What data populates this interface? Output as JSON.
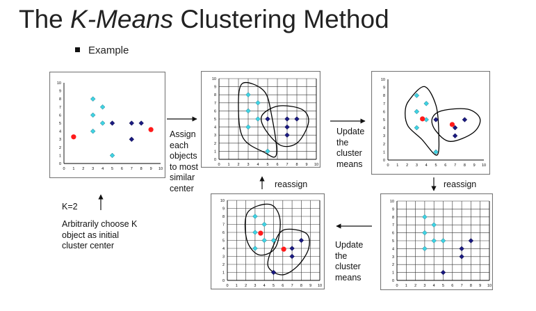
{
  "title_prefix": "The ",
  "title_italic": "K-Means",
  "title_suffix": " Clustering Method",
  "bullet": "Example",
  "labels": {
    "assign": "Assign\neach\nobjects\nto most\nsimilar\ncenter",
    "update_top": "Update\nthe\ncluster\nmeans",
    "update_bottom": "Update\nthe\ncluster\nmeans",
    "reassign_right": "reassign",
    "reassign_bottom": "reassign",
    "k": "K=2",
    "arbitrary": "Arbitrarily choose K\nobject as initial\ncluster center"
  },
  "colors": {
    "light": "#3FD3E3",
    "dark": "#1A1A80",
    "center": "#FF1A1A",
    "grid": "#000000"
  },
  "chart_data": [
    {
      "type": "scatter",
      "id": "p1",
      "xlim": [
        0,
        10
      ],
      "ylim": [
        0,
        10
      ],
      "grid": false,
      "x_ticks": [
        "0",
        "1",
        "2",
        "3",
        "4",
        "5",
        "6",
        "7",
        "8",
        "9",
        "10"
      ],
      "y_ticks": [
        "0",
        "1",
        "2",
        "3",
        "4",
        "5",
        "6",
        "7",
        "8",
        "9",
        "10"
      ],
      "series": [
        {
          "role": "light",
          "points": [
            [
              3,
              8
            ],
            [
              4,
              7
            ],
            [
              3,
              6
            ],
            [
              4,
              5
            ],
            [
              3,
              4
            ],
            [
              5,
              1
            ]
          ]
        },
        {
          "role": "dark",
          "points": [
            [
              5,
              5
            ],
            [
              7,
              5
            ],
            [
              8,
              5
            ],
            [
              7,
              3
            ]
          ]
        },
        {
          "role": "center",
          "points": [
            [
              1,
              3.3
            ],
            [
              9,
              4.2
            ]
          ]
        }
      ]
    },
    {
      "type": "scatter",
      "id": "p2",
      "xlim": [
        0,
        10
      ],
      "ylim": [
        0,
        10
      ],
      "grid": true,
      "x_ticks": [
        "0",
        "1",
        "2",
        "3",
        "4",
        "5",
        "6",
        "7",
        "8",
        "9",
        "10"
      ],
      "y_ticks": [
        "0",
        "1",
        "2",
        "3",
        "4",
        "5",
        "6",
        "7",
        "8",
        "9",
        "10"
      ],
      "series": [
        {
          "role": "light",
          "points": [
            [
              3,
              8
            ],
            [
              4,
              7
            ],
            [
              3,
              6
            ],
            [
              4,
              5
            ],
            [
              3,
              4
            ],
            [
              5,
              1
            ]
          ]
        },
        {
          "role": "dark",
          "points": [
            [
              5,
              5
            ],
            [
              7,
              5
            ],
            [
              8,
              5
            ],
            [
              7,
              4
            ],
            [
              7,
              3
            ]
          ]
        }
      ]
    },
    {
      "type": "scatter",
      "id": "p3",
      "xlim": [
        0,
        10
      ],
      "ylim": [
        0,
        10
      ],
      "grid": false,
      "x_ticks": [
        "0",
        "1",
        "2",
        "3",
        "4",
        "5",
        "6",
        "7",
        "8",
        "9",
        "10"
      ],
      "y_ticks": [
        "0",
        "1",
        "2",
        "3",
        "4",
        "5",
        "6",
        "7",
        "8",
        "9",
        "10"
      ],
      "series": [
        {
          "role": "light",
          "points": [
            [
              3,
              8
            ],
            [
              4,
              7
            ],
            [
              3,
              6
            ],
            [
              4,
              5
            ],
            [
              3,
              4
            ],
            [
              5,
              1
            ]
          ]
        },
        {
          "role": "dark",
          "points": [
            [
              5,
              5
            ],
            [
              7,
              4
            ],
            [
              8,
              5
            ],
            [
              7,
              3
            ]
          ]
        },
        {
          "role": "center",
          "points": [
            [
              3.6,
              5.1
            ],
            [
              6.7,
              4.4
            ]
          ]
        }
      ]
    },
    {
      "type": "scatter",
      "id": "p4",
      "xlim": [
        0,
        10
      ],
      "ylim": [
        0,
        10
      ],
      "grid": true,
      "x_ticks": [
        "0",
        "1",
        "2",
        "3",
        "4",
        "5",
        "6",
        "7",
        "8",
        "9",
        "10"
      ],
      "y_ticks": [
        "0",
        "1",
        "2",
        "3",
        "4",
        "5",
        "6",
        "7",
        "8",
        "9",
        "10"
      ],
      "series": [
        {
          "role": "light",
          "points": [
            [
              3,
              8
            ],
            [
              4,
              7
            ],
            [
              3,
              6
            ],
            [
              4,
              5
            ],
            [
              5,
              5
            ],
            [
              3,
              4
            ]
          ]
        },
        {
          "role": "dark",
          "points": [
            [
              7,
              4
            ],
            [
              8,
              5
            ],
            [
              7,
              3
            ],
            [
              5,
              1
            ]
          ]
        }
      ]
    },
    {
      "type": "scatter",
      "id": "p5",
      "xlim": [
        0,
        10
      ],
      "ylim": [
        0,
        10
      ],
      "grid": true,
      "x_ticks": [
        "0",
        "1",
        "2",
        "3",
        "4",
        "5",
        "6",
        "7",
        "8",
        "9",
        "10"
      ],
      "y_ticks": [
        "0",
        "1",
        "2",
        "3",
        "4",
        "5",
        "6",
        "7",
        "8",
        "9",
        "10"
      ],
      "series": [
        {
          "role": "light",
          "points": [
            [
              3,
              8
            ],
            [
              4,
              7
            ],
            [
              3,
              6
            ],
            [
              4,
              5
            ],
            [
              5,
              5
            ],
            [
              3,
              4
            ]
          ]
        },
        {
          "role": "dark",
          "points": [
            [
              7,
              4
            ],
            [
              8,
              5
            ],
            [
              7,
              3
            ],
            [
              5,
              1
            ]
          ]
        },
        {
          "role": "center",
          "points": [
            [
              3.6,
              5.9
            ],
            [
              6.1,
              3.9
            ]
          ]
        }
      ]
    }
  ]
}
